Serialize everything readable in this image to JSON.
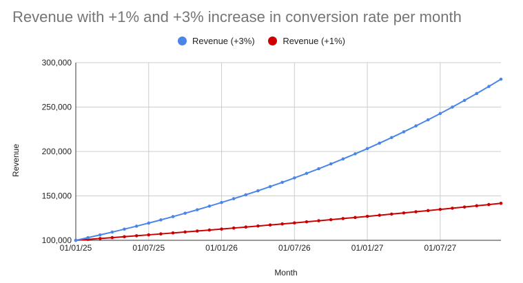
{
  "chart_data": {
    "type": "line",
    "title": "Revenue with +1% and +3% increase in conversion rate per month",
    "xlabel": "Month",
    "ylabel": "Revenue",
    "ylim": [
      100000,
      300000
    ],
    "yticks": [
      "100,000",
      "150,000",
      "200,000",
      "250,000",
      "300,000"
    ],
    "ytick_values": [
      100000,
      150000,
      200000,
      250000,
      300000
    ],
    "xticks": [
      "01/01/25",
      "01/07/25",
      "01/01/26",
      "01/07/26",
      "01/01/27",
      "01/07/27"
    ],
    "x": [
      "01/01/25",
      "01/02/25",
      "01/03/25",
      "01/04/25",
      "01/05/25",
      "01/06/25",
      "01/07/25",
      "01/08/25",
      "01/09/25",
      "01/10/25",
      "01/11/25",
      "01/12/25",
      "01/01/26",
      "01/02/26",
      "01/03/26",
      "01/04/26",
      "01/05/26",
      "01/06/26",
      "01/07/26",
      "01/08/26",
      "01/09/26",
      "01/10/26",
      "01/11/26",
      "01/12/26",
      "01/01/27",
      "01/02/27",
      "01/03/27",
      "01/04/27",
      "01/05/27",
      "01/06/27",
      "01/07/27",
      "01/08/27",
      "01/09/27",
      "01/10/27",
      "01/11/27",
      "01/12/27"
    ],
    "grid": true,
    "legend_position": "top",
    "series": [
      {
        "name": "Revenue (+3%)",
        "color": "#4a86e8",
        "values": [
          100000,
          103000,
          106090,
          109273,
          112551,
          115927,
          119405,
          122987,
          126677,
          130477,
          134392,
          138423,
          142576,
          146853,
          151259,
          155797,
          160471,
          165285,
          170243,
          175351,
          180611,
          186029,
          191610,
          197359,
          203279,
          209378,
          215659,
          222129,
          228793,
          235657,
          242726,
          250008,
          257508,
          265234,
          273191,
          281386
        ]
      },
      {
        "name": "Revenue (+1%)",
        "color": "#cc0000",
        "values": [
          100000,
          101000,
          102010,
          103030,
          104060,
          105101,
          106152,
          107214,
          108286,
          109369,
          110462,
          111567,
          112683,
          113809,
          114947,
          116097,
          117258,
          118430,
          119615,
          120811,
          122019,
          123239,
          124472,
          125716,
          126973,
          128243,
          129526,
          130821,
          132129,
          133450,
          134785,
          136133,
          137494,
          138869,
          140258,
          141660
        ]
      }
    ]
  }
}
